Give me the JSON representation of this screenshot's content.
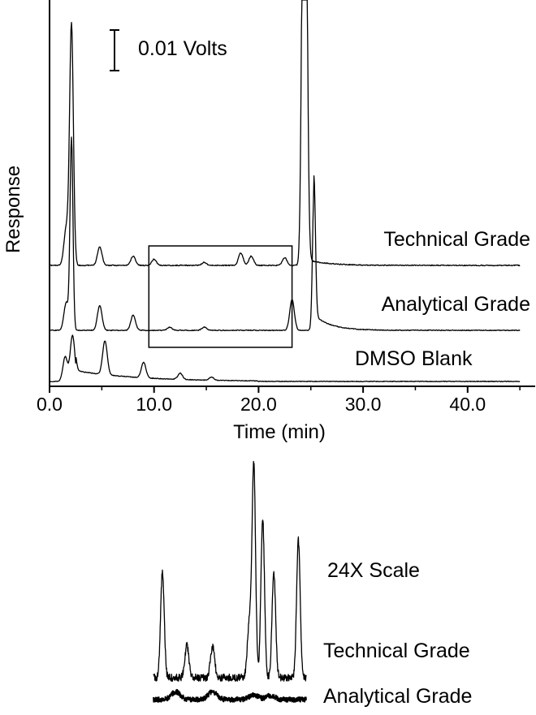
{
  "chart_data": [
    {
      "type": "line",
      "title": "",
      "xlabel": "Time (min)",
      "ylabel": "Response",
      "xlim": [
        0,
        45
      ],
      "x_ticks": [
        "0.0",
        "10.0",
        "20.0",
        "30.0",
        "40.0"
      ],
      "scale_bar_label": "0.01 Volts",
      "grid": false,
      "legend": "labels placed beside each trace (right side)",
      "series": [
        {
          "name": "Technical Grade",
          "peaks": [
            [
              1.6,
              0.12
            ],
            [
              2.1,
              0.78
            ],
            [
              4.8,
              0.06
            ],
            [
              8.0,
              0.03
            ],
            [
              10.0,
              0.02
            ],
            [
              14.8,
              0.01
            ],
            [
              18.3,
              0.04
            ],
            [
              19.3,
              0.03
            ],
            [
              22.5,
              0.025
            ],
            [
              24.3,
              1.25
            ],
            [
              24.5,
              1.1
            ]
          ]
        },
        {
          "name": "Analytical Grade",
          "peaks": [
            [
              1.6,
              0.09
            ],
            [
              2.1,
              0.62
            ],
            [
              4.8,
              0.08
            ],
            [
              8.0,
              0.05
            ],
            [
              11.5,
              0.01
            ],
            [
              14.8,
              0.01
            ],
            [
              23.2,
              0.1
            ],
            [
              25.3,
              0.45
            ]
          ]
        },
        {
          "name": "DMSO Blank",
          "peaks": [
            [
              1.5,
              0.08
            ],
            [
              2.2,
              0.15
            ],
            [
              5.3,
              0.11
            ],
            [
              9.0,
              0.05
            ],
            [
              12.5,
              0.02
            ],
            [
              15.5,
              0.01
            ]
          ]
        }
      ],
      "highlight_box_x": [
        9.5,
        23.2
      ]
    },
    {
      "type": "line",
      "title": "24X Scale",
      "series": [
        {
          "name": "Technical Grade",
          "peaks": [
            [
              10.3,
              0.5
            ],
            [
              12.5,
              0.15
            ],
            [
              14.8,
              0.15
            ],
            [
              18.1,
              0.25
            ],
            [
              18.5,
              1.0
            ],
            [
              19.3,
              0.75
            ],
            [
              20.3,
              0.5
            ],
            [
              22.5,
              0.65
            ]
          ]
        },
        {
          "name": "Analytical Grade",
          "peaks": [
            [
              11.5,
              0.08
            ],
            [
              14.8,
              0.08
            ],
            [
              18.5,
              0.05
            ],
            [
              20.0,
              0.04
            ]
          ]
        }
      ],
      "xlim": [
        9.5,
        23.2
      ]
    }
  ],
  "labels": {
    "scale_bar": "0.01 Volts",
    "y_axis": "Response",
    "x_axis": "Time (min)",
    "trace_technical": "Technical Grade",
    "trace_analytical": "Analytical Grade",
    "trace_blank": "DMSO Blank",
    "inset_scale": "24X Scale",
    "inset_technical": "Technical Grade",
    "inset_analytical": "Analytical Grade"
  }
}
